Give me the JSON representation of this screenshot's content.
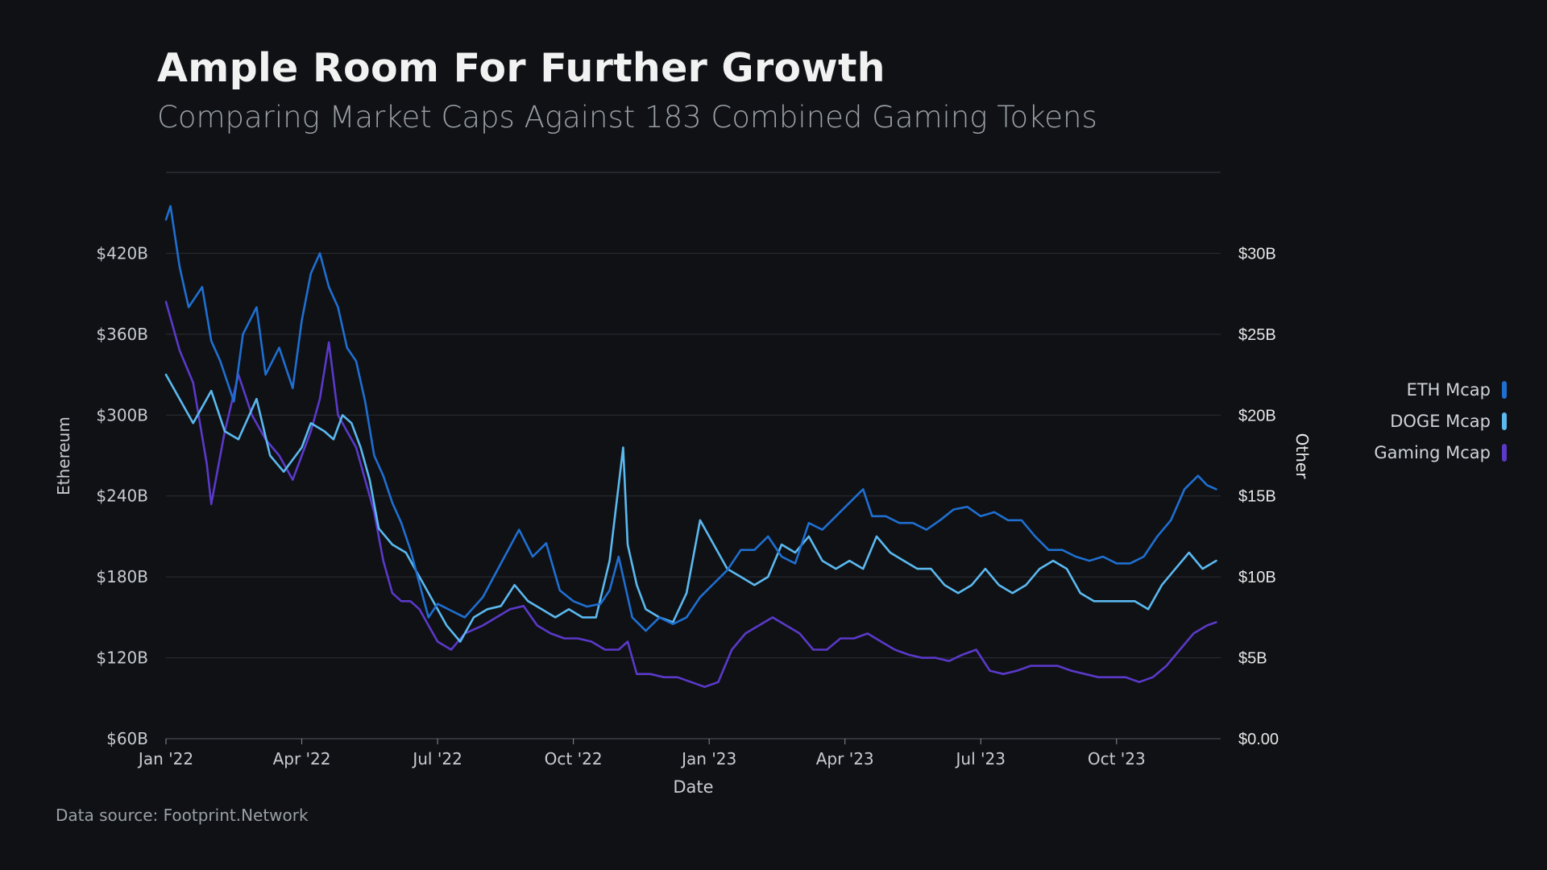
{
  "title": "Ample Room For Further Growth",
  "subtitle": "Comparing Market Caps Against 183 Combined Gaming Tokens",
  "source": "Data source: Footprint.Network",
  "chart_data": {
    "type": "line",
    "title": "Ample Room For Further Growth",
    "subtitle": "Comparing Market Caps Against 183 Combined Gaming Tokens",
    "xlabel": "Date",
    "ylabel_left": "Ethereum",
    "ylabel_right": "Other",
    "x_tick_labels": [
      "Jan '22",
      "Apr '22",
      "Jul '22",
      "Oct '22",
      "Jan '23",
      "Apr '23",
      "Jul '23",
      "Oct '23"
    ],
    "x_tick_months": [
      0,
      3,
      6,
      9,
      12,
      15,
      18,
      21
    ],
    "x_range_months": [
      0,
      23.3
    ],
    "y_left_ticks": [
      60,
      120,
      180,
      240,
      300,
      360,
      420
    ],
    "y_left_tick_labels": [
      "$60B",
      "$120B",
      "$180B",
      "$240B",
      "$300B",
      "$360B",
      "$420B"
    ],
    "y_left_range": [
      60,
      480
    ],
    "y_right_ticks": [
      0,
      5,
      10,
      15,
      20,
      25,
      30
    ],
    "y_right_tick_labels": [
      "$0.00",
      "$5B",
      "$10B",
      "$15B",
      "$20B",
      "$25B",
      "$30B"
    ],
    "y_right_range": [
      0,
      35
    ],
    "grid": true,
    "legend_position": "right",
    "series": [
      {
        "name": "ETH Mcap",
        "axis": "left",
        "color": "#1f6fd1",
        "x": [
          0,
          0.1,
          0.3,
          0.5,
          0.8,
          1.0,
          1.2,
          1.5,
          1.7,
          2.0,
          2.2,
          2.5,
          2.8,
          3.0,
          3.2,
          3.4,
          3.6,
          3.8,
          4.0,
          4.2,
          4.4,
          4.6,
          4.8,
          5.0,
          5.2,
          5.4,
          5.6,
          5.8,
          6.0,
          6.3,
          6.6,
          7.0,
          7.4,
          7.8,
          8.1,
          8.4,
          8.7,
          9.0,
          9.3,
          9.6,
          9.8,
          10.0,
          10.3,
          10.6,
          10.9,
          11.2,
          11.5,
          11.8,
          12.1,
          12.4,
          12.7,
          13.0,
          13.3,
          13.6,
          13.9,
          14.2,
          14.5,
          14.8,
          15.1,
          15.4,
          15.6,
          15.9,
          16.2,
          16.5,
          16.8,
          17.1,
          17.4,
          17.7,
          18.0,
          18.3,
          18.6,
          18.9,
          19.2,
          19.5,
          19.8,
          20.1,
          20.4,
          20.7,
          21.0,
          21.3,
          21.6,
          21.9,
          22.2,
          22.5,
          22.8,
          23.0,
          23.2
        ],
        "values": [
          445,
          455,
          410,
          380,
          395,
          355,
          340,
          310,
          360,
          380,
          330,
          350,
          320,
          370,
          405,
          420,
          395,
          380,
          350,
          340,
          310,
          270,
          255,
          235,
          220,
          200,
          175,
          150,
          160,
          155,
          150,
          165,
          190,
          215,
          195,
          205,
          170,
          162,
          158,
          160,
          170,
          195,
          150,
          140,
          150,
          145,
          150,
          165,
          175,
          185,
          200,
          200,
          210,
          195,
          190,
          220,
          215,
          225,
          235,
          245,
          225,
          225,
          220,
          220,
          215,
          222,
          230,
          232,
          225,
          228,
          222,
          222,
          210,
          200,
          200,
          195,
          192,
          195,
          190,
          190,
          195,
          210,
          222,
          245,
          255,
          248,
          245
        ]
      },
      {
        "name": "DOGE Mcap",
        "axis": "right",
        "color": "#5bb9f0",
        "x": [
          0,
          0.3,
          0.6,
          1.0,
          1.3,
          1.6,
          2.0,
          2.3,
          2.6,
          3.0,
          3.2,
          3.5,
          3.7,
          3.9,
          4.1,
          4.3,
          4.5,
          4.7,
          5.0,
          5.3,
          5.6,
          5.9,
          6.2,
          6.5,
          6.8,
          7.1,
          7.4,
          7.7,
          8.0,
          8.3,
          8.6,
          8.9,
          9.2,
          9.5,
          9.8,
          10.1,
          10.2,
          10.4,
          10.6,
          10.9,
          11.2,
          11.5,
          11.8,
          12.1,
          12.4,
          12.7,
          13.0,
          13.3,
          13.6,
          13.9,
          14.2,
          14.5,
          14.8,
          15.1,
          15.4,
          15.7,
          16.0,
          16.3,
          16.6,
          16.9,
          17.2,
          17.5,
          17.8,
          18.1,
          18.4,
          18.7,
          19.0,
          19.3,
          19.6,
          19.9,
          20.2,
          20.5,
          20.8,
          21.1,
          21.4,
          21.7,
          22.0,
          22.3,
          22.6,
          22.9,
          23.2
        ],
        "values": [
          22.5,
          21,
          19.5,
          21.5,
          19,
          18.5,
          21,
          17.5,
          16.5,
          18,
          19.5,
          19,
          18.5,
          20,
          19.5,
          18,
          16,
          13,
          12,
          11.5,
          10,
          8.5,
          7,
          6,
          7.5,
          8,
          8.2,
          9.5,
          8.5,
          8,
          7.5,
          8,
          7.5,
          7.5,
          11,
          18,
          12,
          9.5,
          8,
          7.5,
          7.2,
          9,
          13.5,
          12,
          10.5,
          10,
          9.5,
          10,
          12,
          11.5,
          12.5,
          11,
          10.5,
          11,
          10.5,
          12.5,
          11.5,
          11,
          10.5,
          10.5,
          9.5,
          9,
          9.5,
          10.5,
          9.5,
          9,
          9.5,
          10.5,
          11,
          10.5,
          9,
          8.5,
          8.5,
          8.5,
          8.5,
          8,
          9.5,
          10.5,
          11.5,
          10.5,
          11
        ]
      },
      {
        "name": "Gaming Mcap",
        "axis": "right",
        "color": "#5b39c9",
        "x": [
          0,
          0.3,
          0.6,
          0.9,
          1.0,
          1.3,
          1.6,
          1.9,
          2.2,
          2.5,
          2.8,
          3.0,
          3.2,
          3.4,
          3.6,
          3.8,
          4.0,
          4.2,
          4.4,
          4.6,
          4.8,
          5.0,
          5.2,
          5.4,
          5.6,
          5.8,
          6.0,
          6.3,
          6.6,
          7.0,
          7.3,
          7.6,
          7.9,
          8.2,
          8.5,
          8.8,
          9.1,
          9.4,
          9.7,
          10.0,
          10.2,
          10.4,
          10.7,
          11.0,
          11.3,
          11.6,
          11.9,
          12.2,
          12.5,
          12.8,
          13.1,
          13.4,
          13.7,
          14.0,
          14.3,
          14.6,
          14.9,
          15.2,
          15.5,
          15.8,
          16.1,
          16.4,
          16.7,
          17.0,
          17.3,
          17.6,
          17.9,
          18.2,
          18.5,
          18.8,
          19.1,
          19.4,
          19.7,
          20.0,
          20.3,
          20.6,
          20.9,
          21.2,
          21.5,
          21.8,
          22.1,
          22.4,
          22.7,
          23.0,
          23.2
        ],
        "values": [
          27,
          24,
          22,
          17,
          14.5,
          19,
          22.5,
          20,
          18.5,
          17.5,
          16,
          17.5,
          19,
          21,
          24.5,
          20,
          19,
          18,
          16,
          14,
          11,
          9,
          8.5,
          8.5,
          8,
          7,
          6,
          5.5,
          6.5,
          7,
          7.5,
          8,
          8.2,
          7,
          6.5,
          6.2,
          6.2,
          6,
          5.5,
          5.5,
          6,
          4,
          4,
          3.8,
          3.8,
          3.5,
          3.2,
          3.5,
          5.5,
          6.5,
          7,
          7.5,
          7,
          6.5,
          5.5,
          5.5,
          6.2,
          6.2,
          6.5,
          6,
          5.5,
          5.2,
          5,
          5,
          4.8,
          5.2,
          5.5,
          4.2,
          4,
          4.2,
          4.5,
          4.5,
          4.5,
          4.2,
          4,
          3.8,
          3.8,
          3.8,
          3.5,
          3.8,
          4.5,
          5.5,
          6.5,
          7,
          7.2
        ]
      }
    ]
  }
}
